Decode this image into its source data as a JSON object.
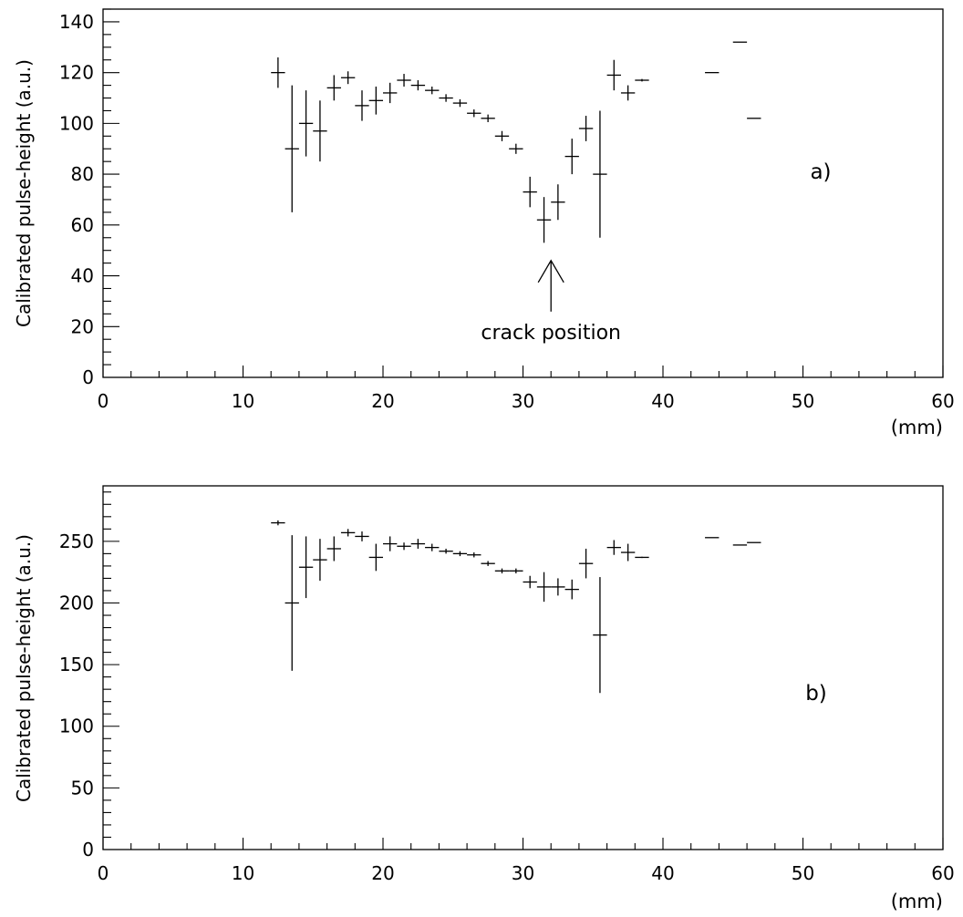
{
  "chart_data": [
    {
      "type": "scatter",
      "panel_label": "a)",
      "ylabel": "Calibrated pulse-height (a.u.)",
      "xlabel": "(mm)",
      "xlim": [
        0,
        60
      ],
      "ylim": [
        0,
        145
      ],
      "x_ticks": [
        0,
        10,
        20,
        30,
        40,
        50,
        60
      ],
      "y_ticks": [
        0,
        20,
        40,
        60,
        80,
        100,
        120,
        140
      ],
      "annotation": {
        "text": "crack position",
        "x": 32,
        "y_tip": 46
      },
      "points": [
        {
          "x": 12.5,
          "y": 120,
          "xerr": 0.5,
          "yerr": 6
        },
        {
          "x": 13.5,
          "y": 90,
          "xerr": 0.5,
          "yerr": 25
        },
        {
          "x": 14.5,
          "y": 100,
          "xerr": 0.5,
          "yerr": 13
        },
        {
          "x": 15.5,
          "y": 97,
          "xerr": 0.5,
          "yerr": 12
        },
        {
          "x": 16.5,
          "y": 114,
          "xerr": 0.5,
          "yerr": 5
        },
        {
          "x": 17.5,
          "y": 118,
          "xerr": 0.5,
          "yerr": 2.5
        },
        {
          "x": 18.5,
          "y": 107,
          "xerr": 0.5,
          "yerr": 6
        },
        {
          "x": 19.5,
          "y": 109,
          "xerr": 0.5,
          "yerr": 5.5
        },
        {
          "x": 20.5,
          "y": 112,
          "xerr": 0.5,
          "yerr": 4
        },
        {
          "x": 21.5,
          "y": 117,
          "xerr": 0.5,
          "yerr": 2.5
        },
        {
          "x": 22.5,
          "y": 115,
          "xerr": 0.5,
          "yerr": 2
        },
        {
          "x": 23.5,
          "y": 113,
          "xerr": 0.5,
          "yerr": 1.5
        },
        {
          "x": 24.5,
          "y": 110,
          "xerr": 0.5,
          "yerr": 1.5
        },
        {
          "x": 25.5,
          "y": 108,
          "xerr": 0.5,
          "yerr": 1.5
        },
        {
          "x": 26.5,
          "y": 104,
          "xerr": 0.5,
          "yerr": 1.5
        },
        {
          "x": 27.5,
          "y": 102,
          "xerr": 0.5,
          "yerr": 1.5
        },
        {
          "x": 28.5,
          "y": 95,
          "xerr": 0.5,
          "yerr": 2
        },
        {
          "x": 29.5,
          "y": 90,
          "xerr": 0.5,
          "yerr": 2
        },
        {
          "x": 30.5,
          "y": 73,
          "xerr": 0.5,
          "yerr": 6
        },
        {
          "x": 31.5,
          "y": 62,
          "xerr": 0.5,
          "yerr": 9
        },
        {
          "x": 32.5,
          "y": 69,
          "xerr": 0.5,
          "yerr": 7
        },
        {
          "x": 33.5,
          "y": 87,
          "xerr": 0.5,
          "yerr": 7
        },
        {
          "x": 34.5,
          "y": 98,
          "xerr": 0.5,
          "yerr": 5
        },
        {
          "x": 35.5,
          "y": 80,
          "xerr": 0.5,
          "yerr": 25
        },
        {
          "x": 36.5,
          "y": 119,
          "xerr": 0.5,
          "yerr": 6
        },
        {
          "x": 37.5,
          "y": 112,
          "xerr": 0.5,
          "yerr": 3
        },
        {
          "x": 38.5,
          "y": 117,
          "xerr": 0.5,
          "yerr": 0.5
        },
        {
          "x": 43.5,
          "y": 120,
          "xerr": 0.5,
          "yerr": 0
        },
        {
          "x": 45.5,
          "y": 132,
          "xerr": 0.5,
          "yerr": 0
        },
        {
          "x": 46.5,
          "y": 102,
          "xerr": 0.5,
          "yerr": 0
        }
      ]
    },
    {
      "type": "scatter",
      "panel_label": "b)",
      "ylabel": "Calibrated pulse-height (a.u.)",
      "xlabel": "(mm)",
      "xlim": [
        0,
        60
      ],
      "ylim": [
        0,
        295
      ],
      "x_ticks": [
        0,
        10,
        20,
        30,
        40,
        50,
        60
      ],
      "y_ticks": [
        0,
        50,
        100,
        150,
        200,
        250
      ],
      "points": [
        {
          "x": 12.5,
          "y": 265,
          "xerr": 0.5,
          "yerr": 2
        },
        {
          "x": 13.5,
          "y": 200,
          "xerr": 0.5,
          "yerr": 55
        },
        {
          "x": 14.5,
          "y": 229,
          "xerr": 0.5,
          "yerr": 25
        },
        {
          "x": 15.5,
          "y": 235,
          "xerr": 0.5,
          "yerr": 17
        },
        {
          "x": 16.5,
          "y": 244,
          "xerr": 0.5,
          "yerr": 10
        },
        {
          "x": 17.5,
          "y": 257,
          "xerr": 0.5,
          "yerr": 3
        },
        {
          "x": 18.5,
          "y": 254,
          "xerr": 0.5,
          "yerr": 4
        },
        {
          "x": 19.5,
          "y": 237,
          "xerr": 0.5,
          "yerr": 11
        },
        {
          "x": 20.5,
          "y": 248,
          "xerr": 0.5,
          "yerr": 6
        },
        {
          "x": 21.5,
          "y": 246,
          "xerr": 0.5,
          "yerr": 3
        },
        {
          "x": 22.5,
          "y": 248,
          "xerr": 0.5,
          "yerr": 4
        },
        {
          "x": 23.5,
          "y": 245,
          "xerr": 0.5,
          "yerr": 3
        },
        {
          "x": 24.5,
          "y": 242,
          "xerr": 0.5,
          "yerr": 2
        },
        {
          "x": 25.5,
          "y": 240,
          "xerr": 0.5,
          "yerr": 2
        },
        {
          "x": 26.5,
          "y": 239,
          "xerr": 0.5,
          "yerr": 2
        },
        {
          "x": 27.5,
          "y": 232,
          "xerr": 0.5,
          "yerr": 2
        },
        {
          "x": 28.5,
          "y": 226,
          "xerr": 0.5,
          "yerr": 2
        },
        {
          "x": 29.5,
          "y": 226,
          "xerr": 0.5,
          "yerr": 2
        },
        {
          "x": 30.5,
          "y": 217,
          "xerr": 0.5,
          "yerr": 5
        },
        {
          "x": 31.5,
          "y": 213,
          "xerr": 0.5,
          "yerr": 12
        },
        {
          "x": 32.5,
          "y": 213,
          "xerr": 0.5,
          "yerr": 7
        },
        {
          "x": 33.5,
          "y": 211,
          "xerr": 0.5,
          "yerr": 8
        },
        {
          "x": 34.5,
          "y": 232,
          "xerr": 0.5,
          "yerr": 12
        },
        {
          "x": 35.5,
          "y": 174,
          "xerr": 0.5,
          "yerr": 47
        },
        {
          "x": 36.5,
          "y": 245,
          "xerr": 0.5,
          "yerr": 6
        },
        {
          "x": 37.5,
          "y": 241,
          "xerr": 0.5,
          "yerr": 7
        },
        {
          "x": 38.5,
          "y": 237,
          "xerr": 0.5,
          "yerr": 0.5
        },
        {
          "x": 43.5,
          "y": 253,
          "xerr": 0.5,
          "yerr": 0
        },
        {
          "x": 45.5,
          "y": 247,
          "xerr": 0.5,
          "yerr": 0
        },
        {
          "x": 46.5,
          "y": 249,
          "xerr": 0.5,
          "yerr": 0
        }
      ]
    }
  ]
}
